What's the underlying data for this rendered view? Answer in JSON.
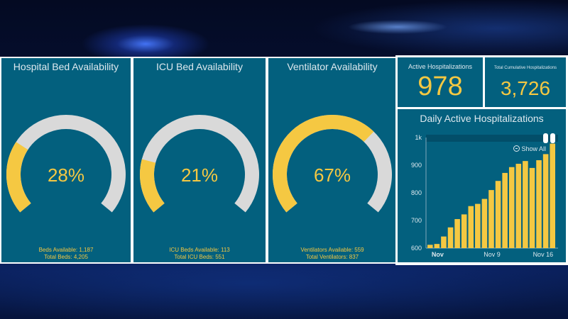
{
  "gauges": [
    {
      "title": "Hospital Bed Availability",
      "percent": 28,
      "percent_label": "28%",
      "foot1": "Beds Available: 1,187",
      "foot2": "Total Beds: 4,205"
    },
    {
      "title": "ICU Bed Availability",
      "percent": 21,
      "percent_label": "21%",
      "foot1": "ICU Beds Available: 113",
      "foot2": "Total ICU Beds: 551"
    },
    {
      "title": "Ventilator Availability",
      "percent": 67,
      "percent_label": "67%",
      "foot1": "Ventilators Available: 559",
      "foot2": "Total Ventilators: 837"
    }
  ],
  "active": {
    "label": "Active Hospitalizations",
    "value": "978"
  },
  "cumulative": {
    "label": "Total Cumulative Hospitalizations",
    "value": "3,726"
  },
  "daily": {
    "title": "Daily Active Hospitalizations",
    "show_all": "Show All"
  },
  "colors": {
    "panel": "#03607e",
    "accent": "#f5c842",
    "track": "#d9d9d9"
  },
  "icons": {
    "show_all": "zoom-out-icon",
    "handles": "slider-handle-icon"
  },
  "chart_data": {
    "type": "bar",
    "title": "Daily Active Hospitalizations",
    "x_tick_labels": [
      "Nov",
      "Nov 9",
      "Nov 16"
    ],
    "y_tick_labels": [
      "600",
      "700",
      "800",
      "900",
      "1k"
    ],
    "ylim": [
      600,
      1000
    ],
    "values": [
      612,
      615,
      642,
      675,
      705,
      722,
      752,
      760,
      778,
      810,
      843,
      872,
      893,
      905,
      915,
      890,
      918,
      940,
      978
    ],
    "grid": false
  }
}
